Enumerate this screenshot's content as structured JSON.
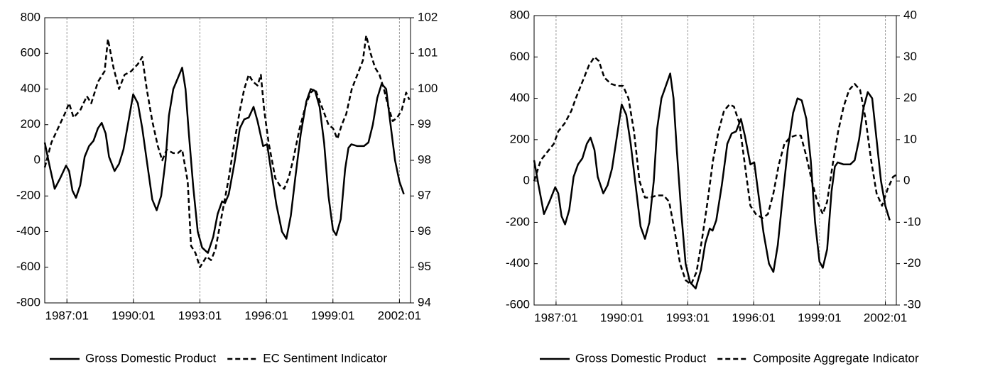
{
  "chart_data": [
    {
      "type": "line",
      "grid": "x",
      "xlim": [
        1986.0,
        2002.5
      ],
      "xticks": [
        {
          "value": 1987,
          "label": "1987:01"
        },
        {
          "value": 1990,
          "label": "1990:01"
        },
        {
          "value": 1993,
          "label": "1993:01"
        },
        {
          "value": 1996,
          "label": "1996:01"
        },
        {
          "value": 1999,
          "label": "1999:01"
        },
        {
          "value": 2002,
          "label": "2002:01"
        }
      ],
      "ylim": [
        -800,
        800
      ],
      "yticks": [
        -800,
        -600,
        -400,
        -200,
        0,
        200,
        400,
        600,
        800
      ],
      "y2lim": [
        94,
        102
      ],
      "y2ticks": [
        94,
        95,
        96,
        97,
        98,
        99,
        100,
        101,
        102
      ],
      "series": [
        {
          "name": "Gross Domestic Product",
          "color": "#000000",
          "line_style": "solid",
          "axis": "y",
          "x": [
            1986.0,
            1986.2,
            1986.45,
            1986.7,
            1986.96,
            1987.1,
            1987.25,
            1987.41,
            1987.6,
            1987.8,
            1988.0,
            1988.2,
            1988.4,
            1988.57,
            1988.75,
            1988.9,
            1989.15,
            1989.35,
            1989.55,
            1989.75,
            1989.99,
            1990.2,
            1990.4,
            1990.6,
            1990.85,
            1991.05,
            1991.25,
            1991.45,
            1991.6,
            1991.8,
            1992.0,
            1992.2,
            1992.35,
            1992.5,
            1992.7,
            1992.9,
            1993.1,
            1993.36,
            1993.6,
            1993.8,
            1994.0,
            1994.13,
            1994.3,
            1994.55,
            1994.8,
            1995.0,
            1995.2,
            1995.42,
            1995.6,
            1995.85,
            1996.03,
            1996.2,
            1996.45,
            1996.7,
            1996.9,
            1997.1,
            1997.3,
            1997.55,
            1997.8,
            1998.0,
            1998.19,
            1998.4,
            1998.6,
            1998.8,
            1999.0,
            1999.15,
            1999.35,
            1999.55,
            1999.7,
            1999.83,
            2000.1,
            2000.4,
            2000.6,
            2000.8,
            2001.0,
            2001.2,
            2001.4,
            2001.6,
            2001.8,
            2002.0,
            2002.2
          ],
          "values": [
            100,
            -20,
            -160,
            -100,
            -30,
            -60,
            -170,
            -210,
            -140,
            20,
            80,
            110,
            180,
            210,
            150,
            20,
            -60,
            -20,
            60,
            200,
            370,
            320,
            180,
            0,
            -220,
            -280,
            -200,
            0,
            250,
            400,
            460,
            520,
            400,
            150,
            -150,
            -400,
            -490,
            -520,
            -430,
            -300,
            -230,
            -240,
            -190,
            -20,
            180,
            230,
            240,
            300,
            220,
            80,
            90,
            -50,
            -250,
            -400,
            -440,
            -310,
            -100,
            150,
            330,
            400,
            390,
            300,
            100,
            -200,
            -390,
            -420,
            -330,
            -50,
            70,
            90,
            80,
            80,
            100,
            200,
            350,
            430,
            400,
            200,
            0,
            -120,
            -190
          ]
        },
        {
          "name": "EC Sentiment Indicator",
          "color": "#000000",
          "line_style": "dashed",
          "axis": "y2",
          "x": [
            1986.0,
            1986.3,
            1986.6,
            1986.9,
            1987.1,
            1987.3,
            1987.6,
            1987.9,
            1988.1,
            1988.4,
            1988.7,
            1988.85,
            1989.1,
            1989.35,
            1989.6,
            1989.9,
            1990.2,
            1990.4,
            1990.6,
            1990.85,
            1991.1,
            1991.3,
            1991.5,
            1991.8,
            1992.0,
            1992.2,
            1992.45,
            1992.6,
            1992.8,
            1993.0,
            1993.3,
            1993.5,
            1993.7,
            1994.0,
            1994.3,
            1994.55,
            1994.8,
            1995.0,
            1995.2,
            1995.4,
            1995.6,
            1995.75,
            1995.9,
            1996.1,
            1996.4,
            1996.6,
            1996.8,
            1997.0,
            1997.2,
            1997.5,
            1997.8,
            1998.0,
            1998.2,
            1998.5,
            1998.8,
            1999.0,
            1999.2,
            1999.4,
            1999.6,
            1999.85,
            2000.1,
            2000.35,
            2000.5,
            2000.7,
            2000.9,
            2001.1,
            2001.3,
            2001.5,
            2001.7,
            2001.9,
            2002.1,
            2002.3,
            2002.45
          ],
          "values": [
            97.8,
            98.5,
            98.9,
            99.3,
            99.6,
            99.2,
            99.4,
            99.8,
            99.6,
            100.2,
            100.5,
            101.4,
            100.6,
            100.0,
            100.4,
            100.5,
            100.7,
            100.9,
            100.0,
            99.1,
            98.4,
            98.0,
            98.3,
            98.2,
            98.2,
            98.3,
            97.4,
            95.6,
            95.4,
            95.0,
            95.3,
            95.2,
            95.5,
            96.5,
            97.5,
            98.5,
            99.4,
            100.0,
            100.4,
            100.2,
            100.1,
            100.4,
            99.4,
            98.5,
            97.5,
            97.3,
            97.2,
            97.5,
            98.0,
            98.9,
            99.6,
            99.9,
            100.0,
            99.5,
            99.0,
            98.9,
            98.6,
            99.0,
            99.3,
            100.0,
            100.4,
            100.8,
            101.5,
            101.0,
            100.6,
            100.4,
            100.0,
            99.5,
            99.1,
            99.2,
            99.4,
            99.9,
            99.7
          ]
        }
      ]
    },
    {
      "type": "line",
      "grid": "x",
      "xlim": [
        1986.0,
        2002.5
      ],
      "xticks": [
        {
          "value": 1987,
          "label": "1987:01"
        },
        {
          "value": 1990,
          "label": "1990:01"
        },
        {
          "value": 1993,
          "label": "1993:01"
        },
        {
          "value": 1996,
          "label": "1996:01"
        },
        {
          "value": 1999,
          "label": "1999:01"
        },
        {
          "value": 2002,
          "label": "2002:01"
        }
      ],
      "ylim": [
        -600,
        800
      ],
      "yticks": [
        -600,
        -400,
        -200,
        0,
        200,
        400,
        600,
        800
      ],
      "y2lim": [
        -30,
        40
      ],
      "y2ticks": [
        -30,
        -20,
        -10,
        0,
        10,
        20,
        30,
        40
      ],
      "series": [
        {
          "name": "Gross Domestic Product",
          "color": "#000000",
          "line_style": "solid",
          "axis": "y",
          "x": [
            1986.0,
            1986.2,
            1986.45,
            1986.7,
            1986.96,
            1987.1,
            1987.25,
            1987.41,
            1987.6,
            1987.8,
            1988.0,
            1988.2,
            1988.4,
            1988.57,
            1988.75,
            1988.9,
            1989.15,
            1989.35,
            1989.55,
            1989.75,
            1989.99,
            1990.2,
            1990.4,
            1990.6,
            1990.85,
            1991.05,
            1991.25,
            1991.45,
            1991.6,
            1991.8,
            1992.0,
            1992.2,
            1992.35,
            1992.5,
            1992.7,
            1992.9,
            1993.1,
            1993.36,
            1993.6,
            1993.8,
            1994.0,
            1994.13,
            1994.3,
            1994.55,
            1994.8,
            1995.0,
            1995.2,
            1995.42,
            1995.6,
            1995.85,
            1996.03,
            1996.2,
            1996.45,
            1996.7,
            1996.9,
            1997.1,
            1997.3,
            1997.55,
            1997.8,
            1998.0,
            1998.19,
            1998.4,
            1998.6,
            1998.8,
            1999.0,
            1999.15,
            1999.35,
            1999.55,
            1999.7,
            1999.83,
            2000.1,
            2000.4,
            2000.6,
            2000.8,
            2001.0,
            2001.2,
            2001.4,
            2001.6,
            2001.8,
            2002.0,
            2002.2
          ],
          "values": [
            100,
            -20,
            -160,
            -100,
            -30,
            -60,
            -170,
            -210,
            -140,
            20,
            80,
            110,
            180,
            210,
            150,
            20,
            -60,
            -20,
            60,
            200,
            370,
            320,
            180,
            0,
            -220,
            -280,
            -200,
            0,
            250,
            400,
            460,
            520,
            400,
            150,
            -150,
            -400,
            -490,
            -520,
            -430,
            -300,
            -230,
            -240,
            -190,
            -20,
            180,
            230,
            240,
            300,
            220,
            80,
            90,
            -50,
            -250,
            -400,
            -440,
            -310,
            -100,
            150,
            330,
            400,
            390,
            300,
            100,
            -200,
            -390,
            -420,
            -330,
            -50,
            70,
            90,
            80,
            80,
            100,
            200,
            350,
            430,
            400,
            200,
            0,
            -120,
            -190
          ]
        },
        {
          "name": "Composite Aggregate Indicator",
          "color": "#000000",
          "line_style": "dashed",
          "axis": "y2",
          "x": [
            1986.0,
            1986.3,
            1986.6,
            1986.9,
            1987.1,
            1987.4,
            1987.7,
            1987.9,
            1988.2,
            1988.5,
            1988.75,
            1988.95,
            1989.2,
            1989.5,
            1989.8,
            1990.05,
            1990.3,
            1990.55,
            1990.8,
            1991.05,
            1991.3,
            1991.6,
            1991.9,
            1992.15,
            1992.4,
            1992.65,
            1992.9,
            1993.15,
            1993.4,
            1993.65,
            1993.9,
            1994.15,
            1994.4,
            1994.65,
            1994.9,
            1995.1,
            1995.35,
            1995.6,
            1995.85,
            1996.1,
            1996.4,
            1996.65,
            1996.9,
            1997.15,
            1997.4,
            1997.65,
            1997.9,
            1998.15,
            1998.4,
            1998.65,
            1998.9,
            1999.15,
            1999.35,
            1999.6,
            1999.85,
            2000.1,
            2000.35,
            2000.6,
            2000.85,
            2001.1,
            2001.35,
            2001.6,
            2001.85,
            2002.1,
            2002.35,
            2002.5
          ],
          "values": [
            0,
            5,
            7,
            9,
            12,
            14,
            17,
            20,
            24,
            28,
            30,
            29,
            25,
            23.5,
            23,
            23,
            20,
            12,
            0,
            -4,
            -4,
            -3.5,
            -3.5,
            -5,
            -12,
            -20,
            -24,
            -25,
            -22,
            -14,
            -5,
            5,
            12,
            17,
            18.5,
            18,
            14,
            4,
            -6,
            -8,
            -9,
            -8,
            -3,
            4,
            9,
            10.5,
            11,
            11,
            6,
            0,
            -5,
            -8,
            -5,
            4,
            12,
            18,
            22,
            23.5,
            22,
            15,
            5,
            -3,
            -6,
            -2,
            1,
            1.5
          ]
        }
      ]
    }
  ]
}
